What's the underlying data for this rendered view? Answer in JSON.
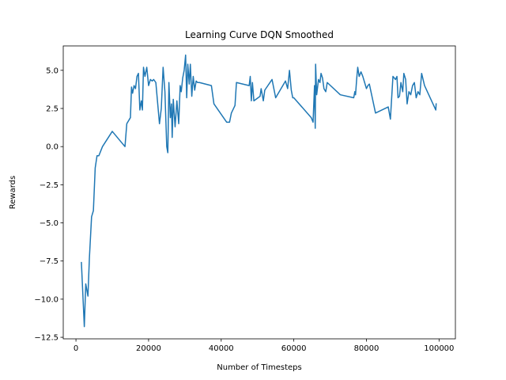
{
  "chart_data": {
    "type": "line",
    "title": "Learning Curve DQN Smoothed",
    "xlabel": "Number of Timesteps",
    "ylabel": "Rewards",
    "xlim": [
      -3500,
      104500
    ],
    "ylim": [
      -12.6,
      6.6
    ],
    "x_ticks": [
      0,
      20000,
      40000,
      60000,
      80000,
      100000
    ],
    "x_tick_labels": [
      "0",
      "20000",
      "40000",
      "60000",
      "80000",
      "100000"
    ],
    "y_ticks": [
      -12.5,
      -10.0,
      -7.5,
      -5.0,
      -2.5,
      0.0,
      2.5,
      5.0
    ],
    "y_tick_labels": [
      "−12.5",
      "−10.0",
      "−7.5",
      "−5.0",
      "−2.5",
      "0.0",
      "2.5",
      "5.0"
    ],
    "grid": false,
    "series": [
      {
        "color": "#1f77b4",
        "x": [
          1500,
          2300,
          2700,
          3300,
          3700,
          4300,
          4800,
          5300,
          5800,
          6300,
          7300,
          10000,
          13500,
          14000,
          15000,
          15300,
          15600,
          16000,
          16400,
          16800,
          17200,
          17600,
          18000,
          18300,
          18600,
          19000,
          19500,
          20000,
          20500,
          21000,
          21400,
          22000,
          23000,
          23500,
          24000,
          24500,
          25000,
          25300,
          25600,
          26000,
          26300,
          26500,
          26800,
          27300,
          27800,
          28300,
          28700,
          29000,
          29400,
          29800,
          30200,
          30500,
          30800,
          31200,
          31500,
          31900,
          32300,
          32700,
          33100,
          33500,
          34000,
          37300,
          38000,
          41500,
          42300,
          42800,
          43800,
          44200,
          47700,
          48000,
          48300,
          48600,
          49000,
          50700,
          51000,
          51300,
          51600,
          52000,
          54000,
          55000,
          57700,
          58300,
          58800,
          59300,
          59700,
          60000,
          64800,
          65300,
          65700,
          65900,
          66000,
          66300,
          66800,
          67200,
          67500,
          67900,
          68300,
          68800,
          69200,
          72800,
          76500,
          76800,
          77000,
          77300,
          77600,
          78000,
          78500,
          79000,
          79500,
          80000,
          80400,
          80800,
          82500,
          86000,
          86600,
          87300,
          88000,
          88400,
          88700,
          89100,
          89500,
          90000,
          90300,
          90800,
          91200,
          91700,
          92200,
          92700,
          93200,
          93700,
          94200,
          94700,
          95200,
          96000,
          99100,
          99200
        ],
        "y": [
          -7.6,
          -11.8,
          -9.0,
          -9.8,
          -7.3,
          -4.6,
          -4.2,
          -1.4,
          -0.6,
          -0.6,
          0.0,
          1.0,
          0.0,
          1.5,
          1.9,
          3.9,
          3.5,
          4.0,
          3.8,
          4.6,
          4.8,
          2.4,
          3.0,
          2.4,
          5.2,
          4.6,
          5.2,
          4.0,
          4.4,
          4.3,
          4.4,
          4.2,
          1.5,
          2.5,
          5.2,
          3.6,
          0.0,
          -0.4,
          4.2,
          1.9,
          2.8,
          0.6,
          3.1,
          1.3,
          3.0,
          1.5,
          4.0,
          3.6,
          4.5,
          5.0,
          6.0,
          3.2,
          5.4,
          4.1,
          5.4,
          3.3,
          4.6,
          3.7,
          4.3,
          4.2,
          4.2,
          4.0,
          2.8,
          1.6,
          1.6,
          2.2,
          2.7,
          4.2,
          4.0,
          4.6,
          3.0,
          4.2,
          3.0,
          3.3,
          3.8,
          3.4,
          3.0,
          3.7,
          4.4,
          3.2,
          4.3,
          3.8,
          5.0,
          3.7,
          3.2,
          3.2,
          1.9,
          1.6,
          4.0,
          1.2,
          5.4,
          3.4,
          4.4,
          4.2,
          4.8,
          4.5,
          3.8,
          3.6,
          4.2,
          3.4,
          3.2,
          3.6,
          3.4,
          4.4,
          5.2,
          4.6,
          4.9,
          4.6,
          4.2,
          3.8,
          4.0,
          4.1,
          2.2,
          2.6,
          1.8,
          4.6,
          4.4,
          4.6,
          3.2,
          3.3,
          4.2,
          3.6,
          4.8,
          4.4,
          2.8,
          3.6,
          3.4,
          4.0,
          4.2,
          3.2,
          3.6,
          3.4,
          4.8,
          4.0,
          2.4,
          2.8
        ]
      }
    ]
  }
}
